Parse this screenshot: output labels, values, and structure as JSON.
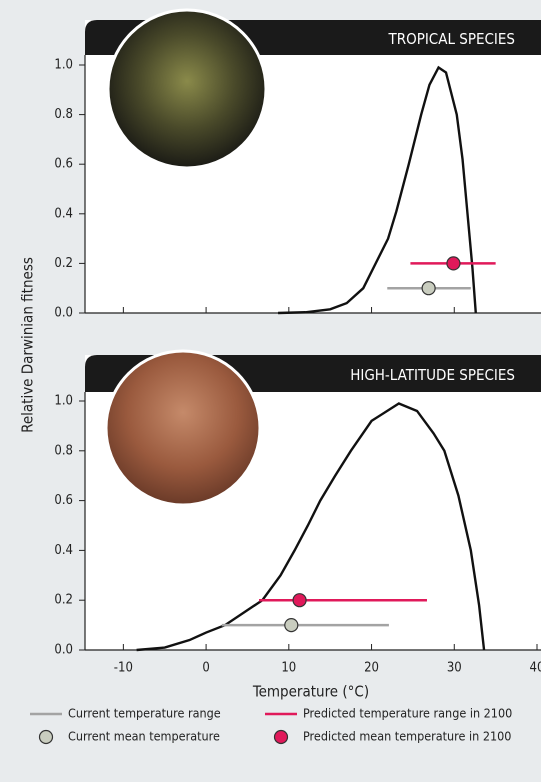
{
  "chart_data": [
    {
      "type": "line",
      "title": "TROPICAL SPECIES",
      "curve": {
        "x": [
          8.7,
          12,
          15,
          17,
          19,
          20.5,
          22,
          23,
          24.5,
          26,
          27,
          28.1,
          29,
          30.3,
          31,
          31.6,
          32.2,
          32.6
        ],
        "y": [
          0,
          0.003,
          0.015,
          0.04,
          0.1,
          0.2,
          0.3,
          0.41,
          0.6,
          0.8,
          0.92,
          0.99,
          0.97,
          0.8,
          0.62,
          0.4,
          0.18,
          0
        ]
      },
      "current_range": [
        21.9,
        32.0
      ],
      "current_mean": 26.9,
      "predicted_range": [
        24.7,
        35.0
      ],
      "predicted_mean": 29.9,
      "xlim": [
        -15,
        40
      ],
      "xticks": [
        -10,
        0,
        10,
        20,
        30
      ],
      "ylim": [
        0,
        1.0
      ],
      "yticks": [
        {
          "value": 0,
          "label": "0.0"
        },
        {
          "value": 0.2,
          "label": "0.2"
        },
        {
          "value": 0.4,
          "label": "0.4"
        },
        {
          "value": 0.6,
          "label": "0.6"
        },
        {
          "value": 0.8,
          "label": "0.8"
        },
        {
          "value": 1.0,
          "label": "1.0"
        }
      ]
    },
    {
      "type": "line",
      "title": "HIGH-LATITUDE SPECIES",
      "curve": {
        "x": [
          -8.4,
          -5,
          -2,
          0,
          2.3,
          5,
          6.8,
          9,
          10.7,
          12.3,
          13.8,
          15.6,
          17.5,
          20,
          23.3,
          25.5,
          27.5,
          28.8,
          30.5,
          32,
          33,
          33.6
        ],
        "y": [
          0,
          0.01,
          0.04,
          0.07,
          0.1,
          0.16,
          0.2,
          0.3,
          0.4,
          0.5,
          0.6,
          0.7,
          0.8,
          0.92,
          0.99,
          0.96,
          0.87,
          0.8,
          0.62,
          0.4,
          0.18,
          0
        ]
      },
      "current_range": [
        1.9,
        22.1
      ],
      "current_mean": 10.3,
      "predicted_range": [
        6.4,
        26.7
      ],
      "predicted_mean": 11.3,
      "xlim": [
        -15,
        40
      ],
      "xticks": [
        -10,
        0,
        10,
        20,
        30,
        40
      ],
      "x_label": "Temperature (°C)",
      "ylim": [
        0,
        1.0
      ],
      "yticks": [
        {
          "value": 0,
          "label": "0.0"
        },
        {
          "value": 0.2,
          "label": "0.2"
        },
        {
          "value": 0.4,
          "label": "0.4"
        },
        {
          "value": 0.6,
          "label": "0.6"
        },
        {
          "value": 0.8,
          "label": "0.8"
        },
        {
          "value": 1.0,
          "label": "1.0"
        }
      ]
    }
  ],
  "y_label": "Relative Darwinian fitness",
  "colors": {
    "curve": "#111111",
    "current": "#a3a3a3",
    "current_dot": "#c9cdbf",
    "predicted": "#e0195a"
  },
  "legend": [
    {
      "label": "Current temperature range",
      "marker": "line",
      "color": "#a3a3a3"
    },
    {
      "label": "Predicted temperature range in 2100",
      "marker": "line",
      "color": "#e0195a"
    },
    {
      "label": "Current mean temperature",
      "marker": "circle",
      "color": "#c9cdbf"
    },
    {
      "label": "Predicted mean temperature in 2100",
      "marker": "circle",
      "color": "#e0195a"
    }
  ]
}
